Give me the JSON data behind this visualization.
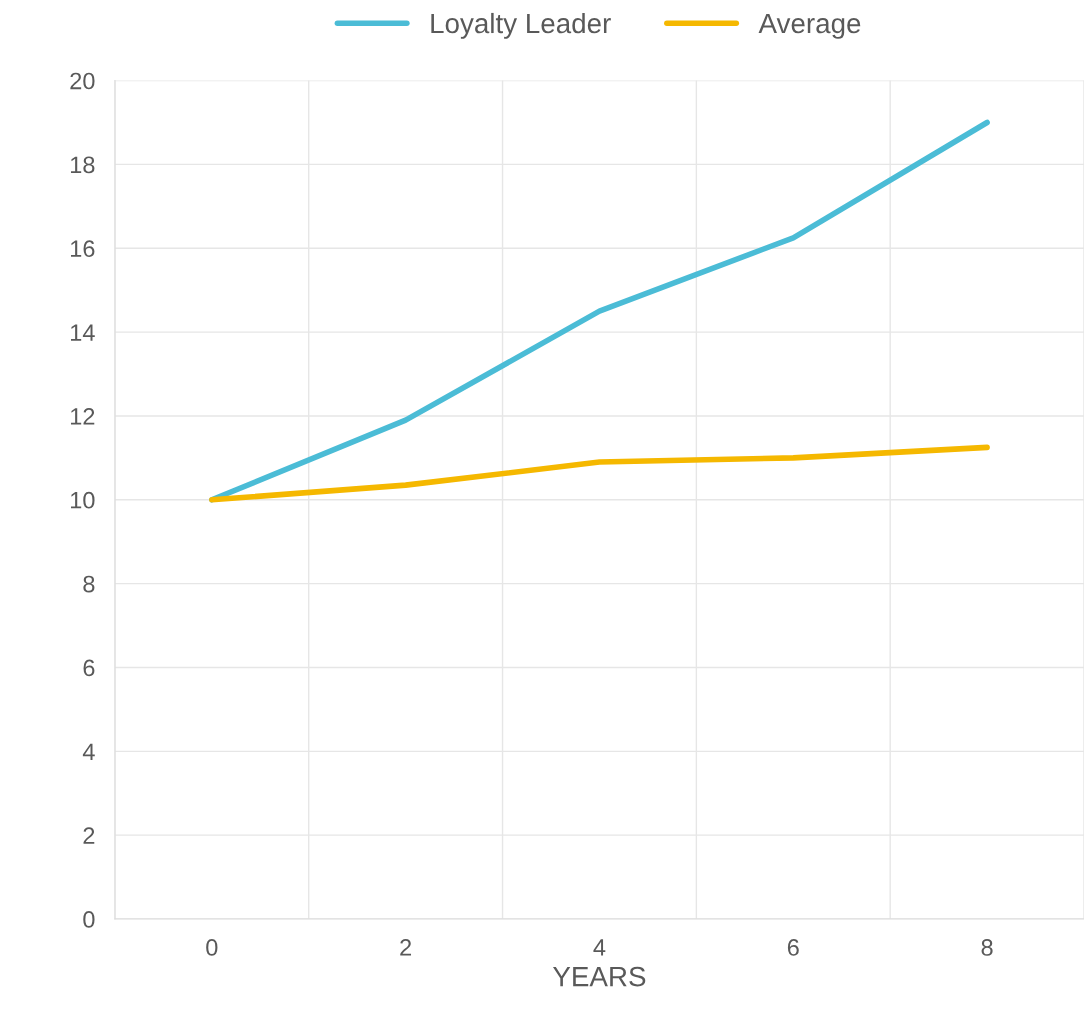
{
  "chart_data": {
    "type": "line",
    "xlabel": "YEARS",
    "categories": [
      "0",
      "2",
      "4",
      "6",
      "8"
    ],
    "series": [
      {
        "name": "Loyalty Leader",
        "color": "#4bbcd6",
        "values": [
          10,
          11.9,
          14.5,
          16.25,
          19
        ]
      },
      {
        "name": "Average",
        "color": "#f5b800",
        "values": [
          10,
          10.35,
          10.9,
          11,
          11.25
        ]
      }
    ],
    "ylim": [
      0,
      20
    ],
    "yticks": [
      0,
      2,
      4,
      6,
      8,
      10,
      12,
      14,
      16,
      18,
      20
    ],
    "grid": true,
    "legend": "top",
    "marker": "none",
    "line_style": "solid"
  }
}
